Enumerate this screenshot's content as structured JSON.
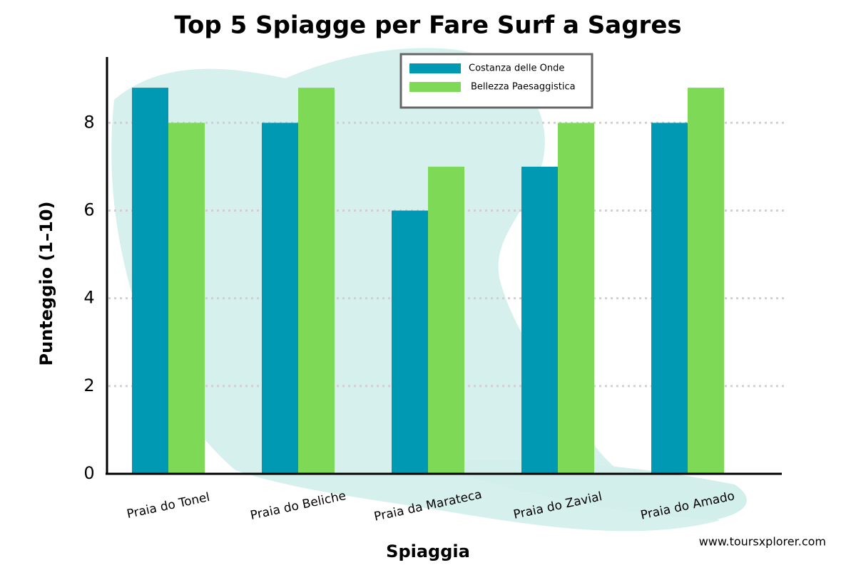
{
  "chart_data": {
    "type": "bar",
    "title": "Top 5 Spiagge per Fare Surf a Sagres",
    "xlabel": "Spiaggia",
    "ylabel": "Punteggio (1–10)",
    "categories": [
      "Praia do Tonel",
      "Praia do Beliche",
      "Praia da Marateca",
      "Praia do Zavial",
      "Praia do Amado"
    ],
    "series": [
      {
        "name": "Costanza delle Onde",
        "color": "#0099b4",
        "values": [
          8.8,
          8,
          6,
          7,
          8
        ]
      },
      {
        "name": "Bellezza Paesaggistica",
        "color": "#7ed957",
        "values": [
          8,
          8.8,
          7,
          8,
          8.8
        ]
      }
    ],
    "ylim": [
      0,
      9.5
    ],
    "yticks": [
      0,
      2,
      4,
      6,
      8
    ],
    "grid": true,
    "legend": "top",
    "watermark": "www.toursxplorer.com"
  }
}
